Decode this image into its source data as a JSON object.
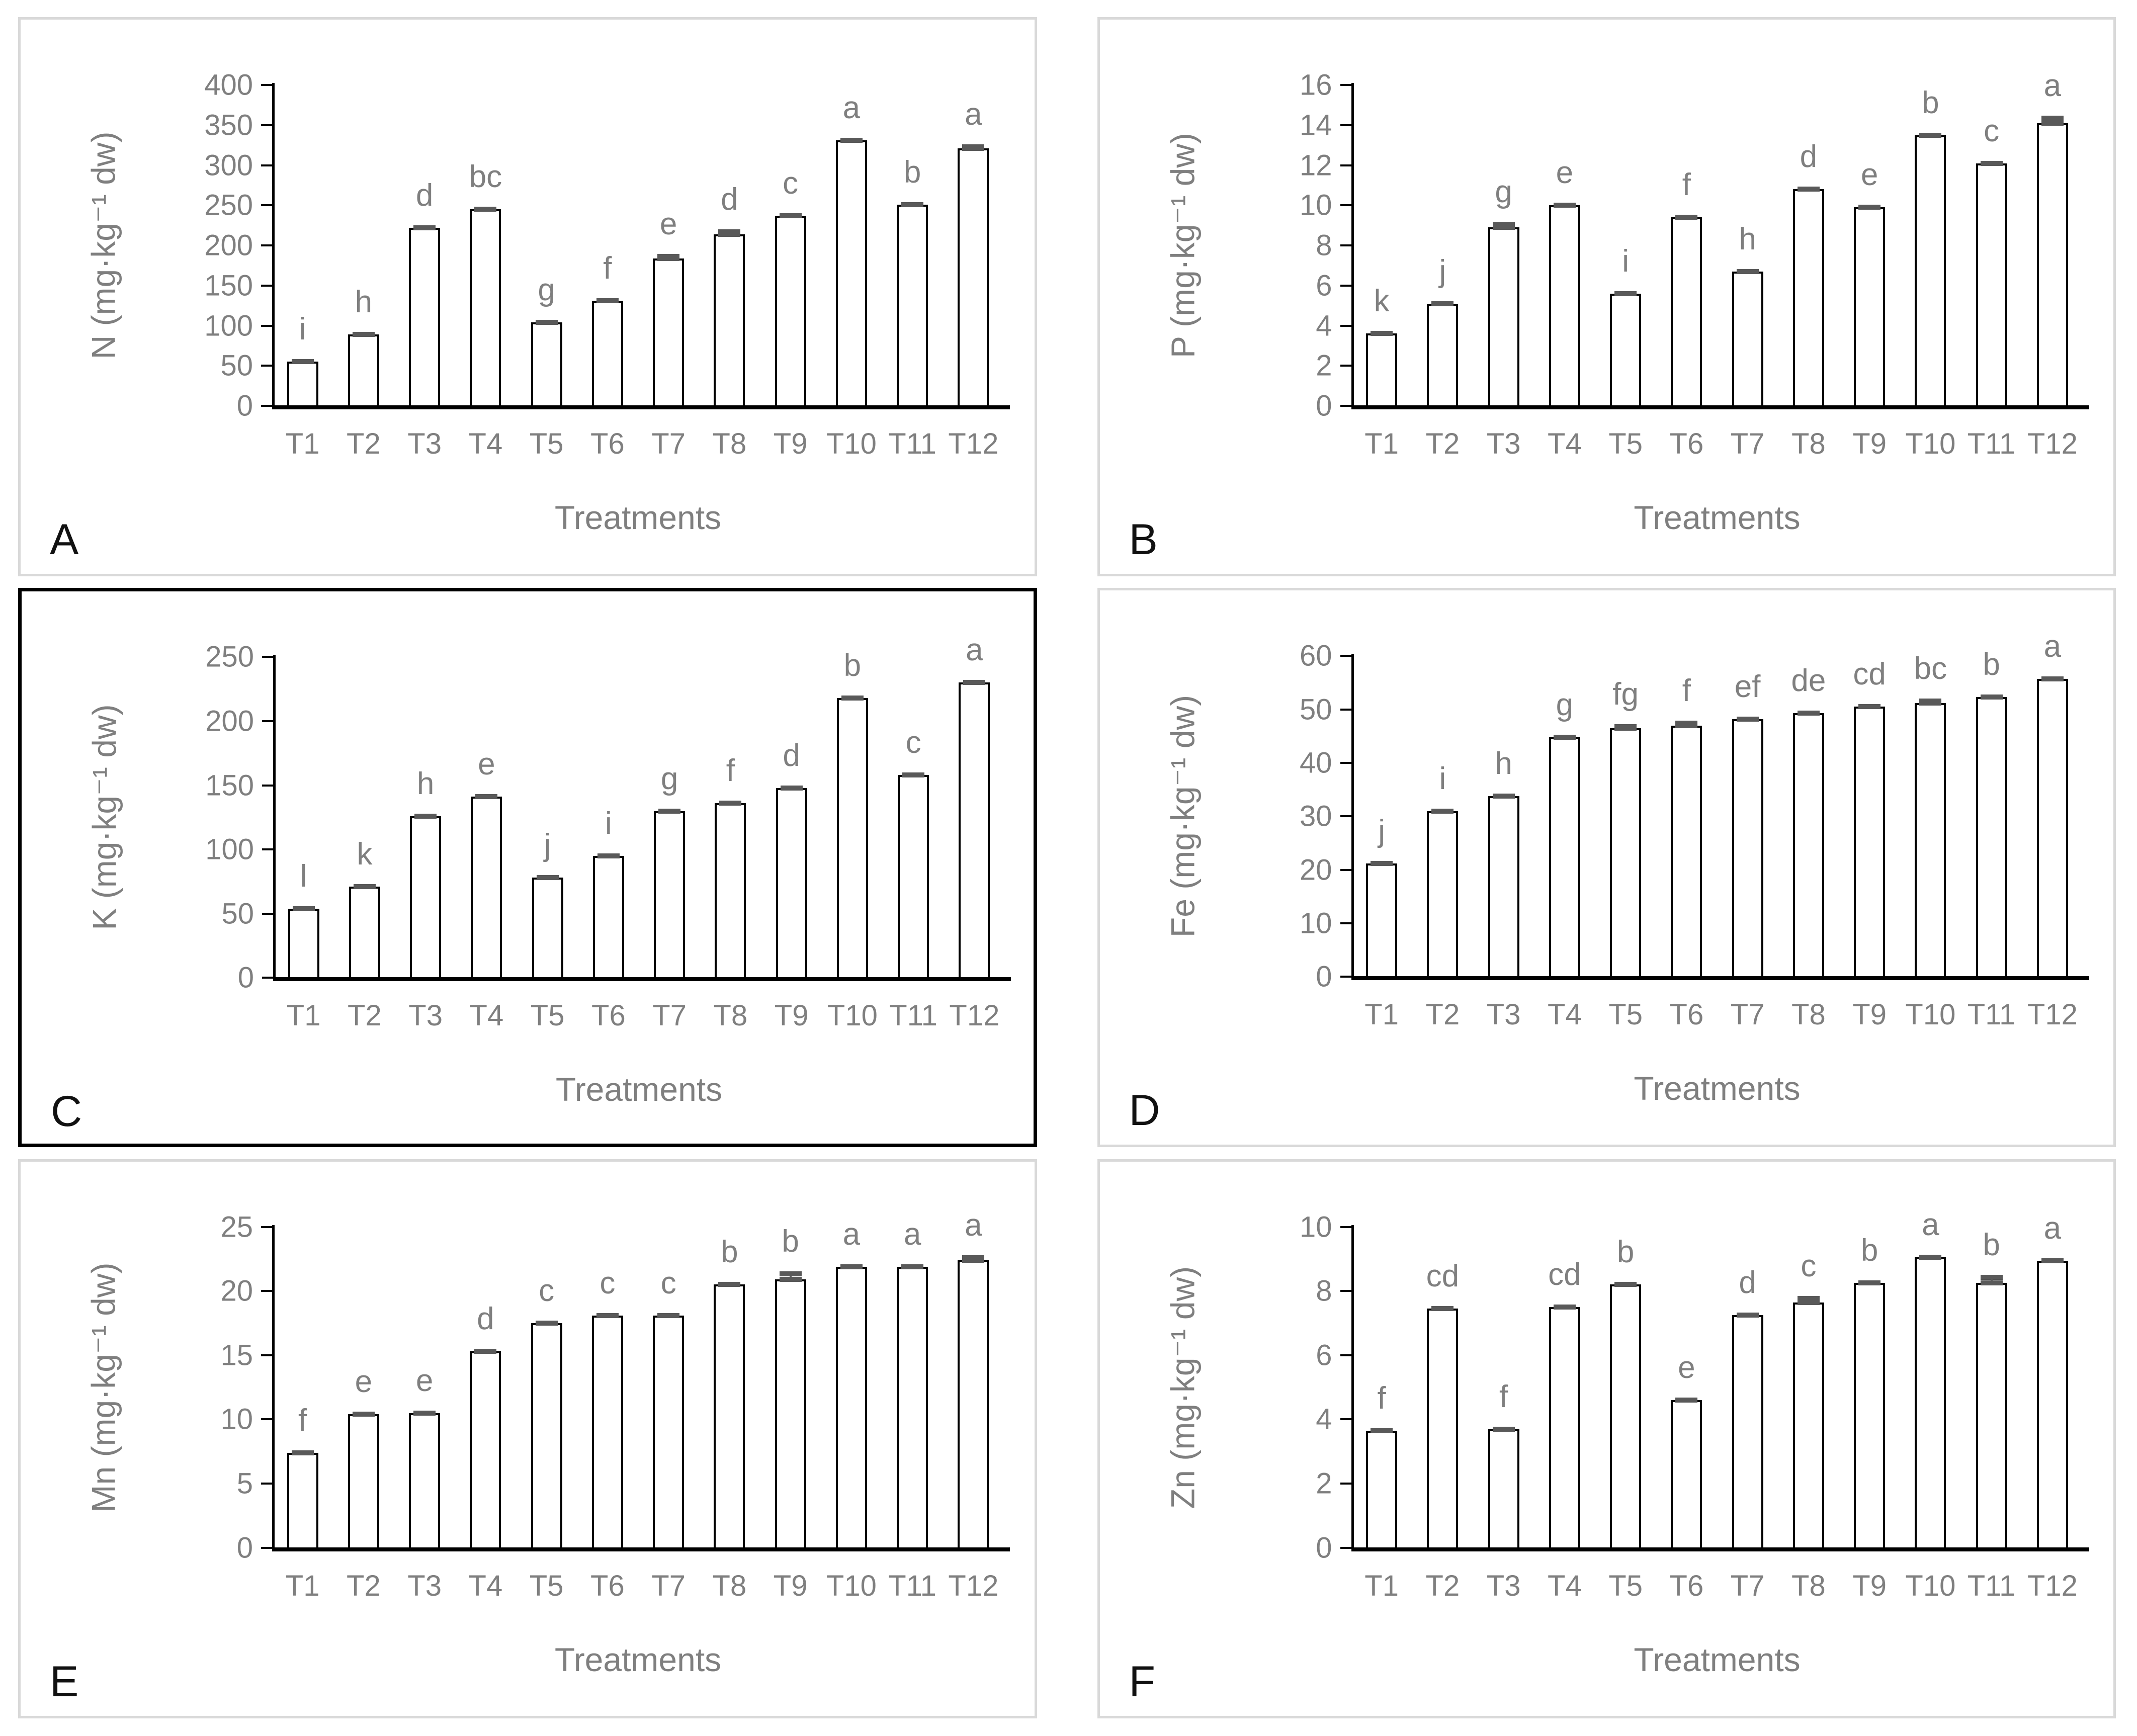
{
  "chart_data": {
    "type": "bar",
    "xlabel": "Treatments",
    "categories": [
      "T1",
      "T2",
      "T3",
      "T4",
      "T5",
      "T6",
      "T7",
      "T8",
      "T9",
      "T10",
      "T11",
      "T12"
    ],
    "legend": "none",
    "grid": "off",
    "bar_style": {
      "fill": "#ffffff",
      "stroke": "#000000",
      "error_cap_color": "#595959"
    },
    "text_color": "#7f7f7f",
    "panel_border_gray": "#d9d9d9",
    "panel_border_black": "#000000",
    "charts": [
      {
        "panel": "A",
        "ylabel": "N (mg·kg⁻¹ dw)",
        "ylim": [
          0,
          400
        ],
        "yticks": [
          0,
          50,
          100,
          150,
          200,
          250,
          300,
          350,
          400
        ],
        "values": [
          55,
          89,
          222,
          245,
          104,
          131,
          184,
          214,
          237,
          331,
          251,
          321
        ],
        "letters": [
          "i",
          "h",
          "d",
          "bc",
          "g",
          "f",
          "e",
          "d",
          "c",
          "a",
          "b",
          "a"
        ],
        "errors": [
          0,
          0,
          0,
          0,
          0,
          0,
          2,
          3,
          0,
          0,
          0,
          2
        ],
        "border": "gray"
      },
      {
        "panel": "B",
        "ylabel": "P (mg·kg⁻¹ dw)",
        "ylim": [
          0,
          16
        ],
        "yticks": [
          0,
          2,
          4,
          6,
          8,
          10,
          12,
          14,
          16
        ],
        "values": [
          3.6,
          5.1,
          8.9,
          10.0,
          5.6,
          9.4,
          6.7,
          10.8,
          9.9,
          13.5,
          12.1,
          14.1
        ],
        "letters": [
          "k",
          "j",
          "g",
          "e",
          "i",
          "f",
          "h",
          "d",
          "e",
          "b",
          "c",
          "a"
        ],
        "errors": [
          0,
          0,
          0.15,
          0,
          0,
          0,
          0,
          0,
          0,
          0,
          0,
          0.25
        ],
        "border": "gray"
      },
      {
        "panel": "C",
        "ylabel": "K (mg·kg⁻¹ dw)",
        "ylim": [
          0,
          250
        ],
        "yticks": [
          0,
          50,
          100,
          150,
          200,
          250
        ],
        "values": [
          54,
          71,
          126,
          141,
          78,
          95,
          130,
          136,
          148,
          218,
          158,
          230
        ],
        "letters": [
          "l",
          "k",
          "h",
          "e",
          "j",
          "i",
          "g",
          "f",
          "d",
          "b",
          "c",
          "a"
        ],
        "errors": [
          0,
          0,
          0,
          0,
          0,
          0,
          0,
          0,
          0,
          0,
          0,
          0
        ],
        "border": "black"
      },
      {
        "panel": "D",
        "ylabel": "Fe (mg·kg⁻¹ dw)",
        "ylim": [
          0,
          60
        ],
        "yticks": [
          0,
          10,
          20,
          30,
          40,
          50,
          60
        ],
        "values": [
          21.2,
          31.0,
          33.8,
          44.8,
          46.5,
          47.0,
          48.2,
          49.3,
          50.5,
          51.2,
          52.3,
          55.7
        ],
        "letters": [
          "j",
          "i",
          "h",
          "g",
          "fg",
          "f",
          "ef",
          "de",
          "cd",
          "bc",
          "b",
          "a"
        ],
        "errors": [
          0,
          0,
          0,
          0,
          0.3,
          0.4,
          0,
          0,
          0,
          0.35,
          0,
          0
        ],
        "border": "gray"
      },
      {
        "panel": "E",
        "ylabel": "Mn (mg·kg⁻¹ dw)",
        "ylim": [
          0,
          25
        ],
        "yticks": [
          0,
          5,
          10,
          15,
          20,
          25
        ],
        "values": [
          7.4,
          10.4,
          10.5,
          15.3,
          17.5,
          18.1,
          18.1,
          20.5,
          20.9,
          21.9,
          21.9,
          22.4
        ],
        "letters": [
          "f",
          "e",
          "e",
          "d",
          "c",
          "c",
          "c",
          "b",
          "b",
          "a",
          "a",
          "a"
        ],
        "errors": [
          0,
          0,
          0,
          0,
          0,
          0,
          0,
          0,
          0.45,
          0,
          0,
          0.2
        ],
        "border": "gray"
      },
      {
        "panel": "F",
        "ylabel": "Zn (mg·kg⁻¹ dw)",
        "ylim": [
          0,
          10
        ],
        "yticks": [
          0,
          2,
          4,
          6,
          8,
          10
        ],
        "values": [
          3.65,
          7.45,
          3.7,
          7.5,
          8.2,
          4.6,
          7.25,
          7.65,
          8.25,
          9.05,
          8.25,
          8.95
        ],
        "letters": [
          "f",
          "cd",
          "f",
          "cd",
          "b",
          "e",
          "d",
          "c",
          "b",
          "a",
          "b",
          "a"
        ],
        "errors": [
          0,
          0,
          0,
          0,
          0,
          0,
          0,
          0.12,
          0,
          0,
          0.18,
          0
        ],
        "border": "gray"
      }
    ]
  }
}
